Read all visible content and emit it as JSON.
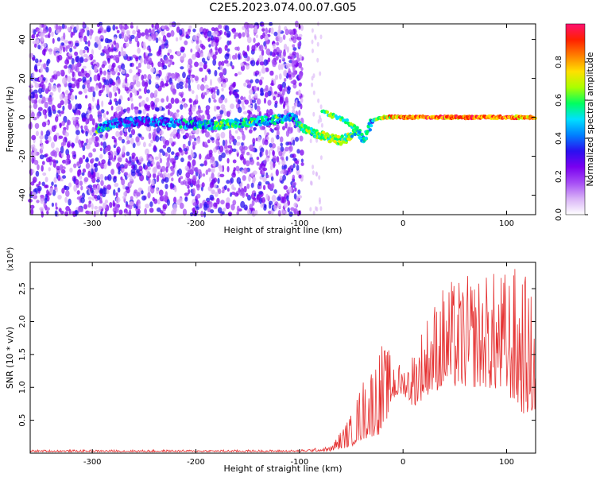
{
  "figure_title": "C2E5.2023.074.00.07.G05",
  "colors": {
    "snr_line": "#e53030",
    "background": "#ffffff",
    "axis": "#000000"
  },
  "colormap": [
    "#ffffff",
    "#d9b3f7",
    "#a64df5",
    "#7a00f0",
    "#2a10f0",
    "#0080ff",
    "#00e0ff",
    "#00ff60",
    "#aaff00",
    "#ffe000",
    "#ff8000",
    "#ff2000",
    "#ff1070"
  ],
  "chart_data": [
    {
      "type": "heatmap",
      "title": "",
      "xlabel": "Height of straight line (km)",
      "ylabel": "Frequency (Hz)",
      "xlim": [
        -360,
        128
      ],
      "ylim": [
        -50,
        48
      ],
      "x_ticks": [
        -300,
        -200,
        -100,
        0,
        100
      ],
      "y_ticks": [
        -40,
        -20,
        0,
        20,
        40
      ],
      "colorbar": {
        "label": "Normalized spectral amplitude",
        "range": [
          0,
          1
        ],
        "ticks": [
          0.0,
          0.2,
          0.4,
          0.6,
          0.8
        ]
      },
      "features": {
        "scattered_noise_x_range": [
          -360,
          -97
        ],
        "scattered_noise_amplitude": 0.3,
        "ridge": [
          {
            "x": -295,
            "freq": -6,
            "amp": 0.5
          },
          {
            "x": -280,
            "freq": -3,
            "amp": 0.4
          },
          {
            "x": -250,
            "freq": -2,
            "amp": 0.35
          },
          {
            "x": -220,
            "freq": -3,
            "amp": 0.4
          },
          {
            "x": -200,
            "freq": -4,
            "amp": 0.45
          },
          {
            "x": -180,
            "freq": -4,
            "amp": 0.5
          },
          {
            "x": -160,
            "freq": -3,
            "amp": 0.5
          },
          {
            "x": -140,
            "freq": -2,
            "amp": 0.5
          },
          {
            "x": -120,
            "freq": -1,
            "amp": 0.5
          },
          {
            "x": -105,
            "freq": 0,
            "amp": 0.4
          },
          {
            "x": -98,
            "freq": -5,
            "amp": 0.6
          },
          {
            "x": -90,
            "freq": -7,
            "amp": 0.6
          },
          {
            "x": -75,
            "freq": -10,
            "amp": 0.6
          },
          {
            "x": -60,
            "freq": -12,
            "amp": 0.6
          },
          {
            "x": -50,
            "freq": -10,
            "amp": 0.6
          },
          {
            "x": -45,
            "freq": -6,
            "amp": 0.55
          },
          {
            "x": -38,
            "freq": -12,
            "amp": 0.5
          },
          {
            "x": -30,
            "freq": -2,
            "amp": 0.5
          },
          {
            "x": -20,
            "freq": 0,
            "amp": 0.7
          },
          {
            "x": 0,
            "freq": 0,
            "amp": 0.85
          },
          {
            "x": 40,
            "freq": 0,
            "amp": 0.85
          },
          {
            "x": 80,
            "freq": 0,
            "amp": 0.85
          },
          {
            "x": 128,
            "freq": 0,
            "amp": 0.8
          }
        ],
        "upper_branch": [
          {
            "x": -78,
            "freq": 3
          },
          {
            "x": -65,
            "freq": 0
          },
          {
            "x": -55,
            "freq": -2
          },
          {
            "x": -45,
            "freq": -6
          }
        ]
      }
    },
    {
      "type": "line",
      "title": "",
      "xlabel": "Height of straight line (km)",
      "ylabel": "SNR (10 * v/v)",
      "y_multiplier": "(x10⁴)",
      "xlim": [
        -360,
        128
      ],
      "ylim": [
        0,
        2.9
      ],
      "x_ticks": [
        -300,
        -200,
        -100,
        0,
        100
      ],
      "y_ticks": [
        0.5,
        1.0,
        1.5,
        2.0,
        2.5
      ],
      "series": [
        {
          "envelope": [
            {
              "x": -360,
              "base": 0.02,
              "peak": 0.05
            },
            {
              "x": -100,
              "base": 0.02,
              "peak": 0.05
            },
            {
              "x": -70,
              "base": 0.03,
              "peak": 0.1
            },
            {
              "x": -50,
              "base": 0.1,
              "peak": 0.6
            },
            {
              "x": -40,
              "base": 0.2,
              "peak": 1.1
            },
            {
              "x": -30,
              "base": 0.25,
              "peak": 1.4
            },
            {
              "x": -20,
              "base": 0.3,
              "peak": 1.7
            },
            {
              "x": -10,
              "base": 0.8,
              "peak": 1.5
            },
            {
              "x": 0,
              "base": 0.9,
              "peak": 1.3
            },
            {
              "x": 10,
              "base": 0.7,
              "peak": 1.6
            },
            {
              "x": 25,
              "base": 0.9,
              "peak": 2.2
            },
            {
              "x": 40,
              "base": 1.0,
              "peak": 2.6
            },
            {
              "x": 60,
              "base": 1.0,
              "peak": 2.7
            },
            {
              "x": 80,
              "base": 1.0,
              "peak": 2.75
            },
            {
              "x": 100,
              "base": 0.9,
              "peak": 2.8
            },
            {
              "x": 115,
              "base": 0.6,
              "peak": 2.9
            },
            {
              "x": 128,
              "base": 0.6,
              "peak": 2.2
            }
          ]
        }
      ]
    }
  ]
}
